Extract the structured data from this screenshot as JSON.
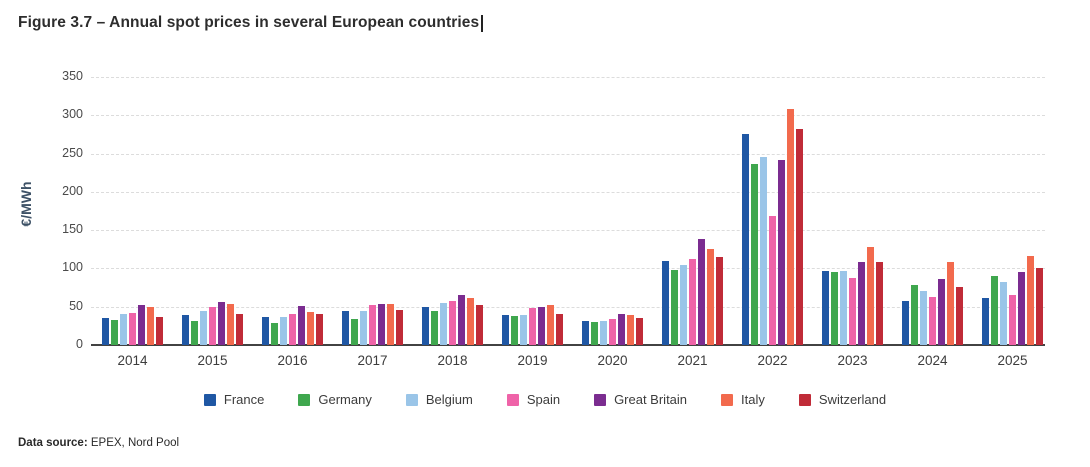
{
  "title": "Figure 3.7 – Annual spot prices in several European countries",
  "footer": {
    "label": "Data source:",
    "text": " EPEX, Nord Pool"
  },
  "chart_data": {
    "type": "bar",
    "title": "Figure 3.7 – Annual spot prices in several European countries",
    "xlabel": "",
    "ylabel": "€/MWh",
    "ylim": [
      0,
      350
    ],
    "yticks": [
      0,
      50,
      100,
      150,
      200,
      250,
      300,
      350
    ],
    "grid": "horizontal-dashed",
    "legend_position": "bottom-center",
    "categories": [
      "2014",
      "2015",
      "2016",
      "2017",
      "2018",
      "2019",
      "2020",
      "2021",
      "2022",
      "2023",
      "2024",
      "2025"
    ],
    "series": [
      {
        "name": "France",
        "color": "#1f57a4",
        "values": [
          35,
          39,
          37,
          45,
          50,
          39,
          32,
          110,
          276,
          97,
          58,
          61
        ]
      },
      {
        "name": "Germany",
        "color": "#3fa74e",
        "values": [
          33,
          32,
          29,
          34,
          45,
          38,
          30,
          98,
          236,
          96,
          79,
          90
        ]
      },
      {
        "name": "Belgium",
        "color": "#9ac5e8",
        "values": [
          41,
          45,
          37,
          45,
          55,
          39,
          31,
          104,
          245,
          97,
          70,
          82
        ]
      },
      {
        "name": "Spain",
        "color": "#ef63a8",
        "values": [
          42,
          50,
          40,
          52,
          57,
          48,
          34,
          112,
          168,
          87,
          63,
          65
        ]
      },
      {
        "name": "Great Britain",
        "color": "#7b2c90",
        "values": [
          52,
          56,
          51,
          53,
          65,
          50,
          40,
          138,
          242,
          108,
          86,
          95
        ]
      },
      {
        "name": "Italy",
        "color": "#f26a4d",
        "values": [
          50,
          53,
          43,
          54,
          61,
          52,
          39,
          125,
          308,
          128,
          109,
          116
        ]
      },
      {
        "name": "Switzerland",
        "color": "#c02b38",
        "values": [
          37,
          40,
          40,
          46,
          52,
          41,
          35,
          115,
          282,
          108,
          76,
          101
        ]
      }
    ]
  }
}
